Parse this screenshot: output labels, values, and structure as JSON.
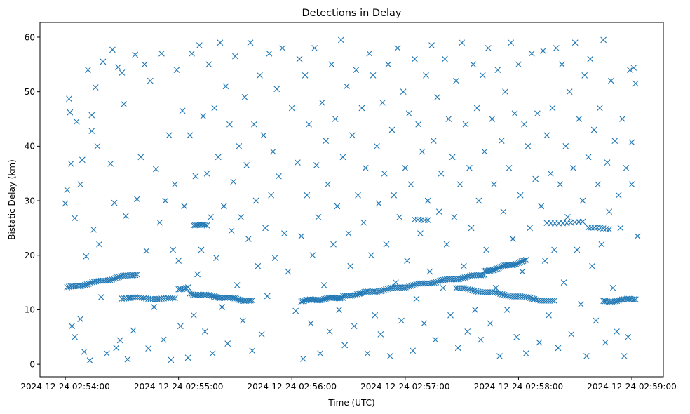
{
  "chart_data": {
    "type": "scatter",
    "title": "Detections in Delay",
    "xlabel": "Time (UTC)",
    "ylabel": "Bistatic Delay (km)",
    "x_units": "seconds after 2024-12-24 02:54:00",
    "xlim": [
      -13.4,
      316.7
    ],
    "ylim": [
      -2.3,
      62.7
    ],
    "grid": false,
    "marker": "x",
    "color": "#1f77b4",
    "x_ticks": [
      {
        "value": 0,
        "label": "2024-12-24 02:54:00"
      },
      {
        "value": 60,
        "label": "2024-12-24 02:55:00"
      },
      {
        "value": 120,
        "label": "2024-12-24 02:56:00"
      },
      {
        "value": 180,
        "label": "2024-12-24 02:57:00"
      },
      {
        "value": 240,
        "label": "2024-12-24 02:58:00"
      },
      {
        "value": 300,
        "label": "2024-12-24 02:59:00"
      }
    ],
    "y_ticks": [
      {
        "value": 0,
        "label": "0"
      },
      {
        "value": 10,
        "label": "10"
      },
      {
        "value": 20,
        "label": "20"
      },
      {
        "value": 30,
        "label": "30"
      },
      {
        "value": 40,
        "label": "40"
      },
      {
        "value": 50,
        "label": "50"
      },
      {
        "value": 60,
        "label": "60"
      }
    ],
    "tracks": [
      {
        "t": [
          1,
          38
        ],
        "d": [
          14.0,
          16.6
        ],
        "n": 40
      },
      {
        "t": [
          30,
          58
        ],
        "d": [
          12.2,
          12.0
        ],
        "n": 25
      },
      {
        "t": [
          60,
          65
        ],
        "d": [
          13.8,
          14.2
        ],
        "n": 6
      },
      {
        "t": [
          68,
          75
        ],
        "d": [
          25.6,
          25.4
        ],
        "n": 10
      },
      {
        "t": [
          66,
          99
        ],
        "d": [
          13.0,
          11.6
        ],
        "n": 40
      },
      {
        "t": [
          125,
          147
        ],
        "d": [
          11.6,
          12.3
        ],
        "n": 30
      },
      {
        "t": [
          147,
          222
        ],
        "d": [
          12.5,
          16.5
        ],
        "n": 80
      },
      {
        "t": [
          222,
          244
        ],
        "d": [
          17.0,
          19.0
        ],
        "n": 30
      },
      {
        "t": [
          207,
          259
        ],
        "d": [
          14.0,
          11.5
        ],
        "n": 50
      },
      {
        "t": [
          285,
          302
        ],
        "d": [
          11.5,
          12.0
        ],
        "n": 20
      },
      {
        "t": [
          255,
          274
        ],
        "d": [
          26.0,
          26.0
        ],
        "n": 10
      },
      {
        "t": [
          185,
          192
        ],
        "d": [
          26.5,
          26.6
        ],
        "n": 5
      },
      {
        "t": [
          277,
          288
        ],
        "d": [
          25.0,
          24.8
        ],
        "n": 8
      }
    ],
    "points": [
      [
        0,
        29.5
      ],
      [
        1,
        32
      ],
      [
        2,
        48.7
      ],
      [
        2.5,
        46.2
      ],
      [
        3,
        36.8
      ],
      [
        3.5,
        7
      ],
      [
        5,
        5
      ],
      [
        5,
        26.8
      ],
      [
        6,
        44.5
      ],
      [
        8,
        33
      ],
      [
        8,
        8.3
      ],
      [
        9,
        37.5
      ],
      [
        10,
        2.3
      ],
      [
        11,
        19.8
      ],
      [
        12,
        54
      ],
      [
        13,
        0.7
      ],
      [
        14,
        42.8
      ],
      [
        14,
        45.7
      ],
      [
        15,
        24.7
      ],
      [
        16,
        50.8
      ],
      [
        17,
        40
      ],
      [
        18,
        22
      ],
      [
        19,
        12.3
      ],
      [
        20,
        55.5
      ],
      [
        22,
        2
      ],
      [
        24,
        36.8
      ],
      [
        25,
        57.7
      ],
      [
        26,
        29.6
      ],
      [
        27,
        3
      ],
      [
        28,
        54.5
      ],
      [
        29,
        4.4
      ],
      [
        30,
        53.5
      ],
      [
        31,
        47.7
      ],
      [
        32,
        27.2
      ],
      [
        33,
        0.9
      ],
      [
        34,
        12.2
      ],
      [
        36,
        6.2
      ],
      [
        37,
        56.8
      ],
      [
        38,
        30.3
      ],
      [
        40,
        38
      ],
      [
        42,
        55
      ],
      [
        43,
        20.8
      ],
      [
        44,
        2.9
      ],
      [
        45,
        52
      ],
      [
        47,
        10.5
      ],
      [
        48,
        35.8
      ],
      [
        50,
        26
      ],
      [
        51,
        57
      ],
      [
        52,
        4.5
      ],
      [
        53,
        30
      ],
      [
        55,
        42
      ],
      [
        56,
        0.8
      ],
      [
        57,
        21
      ],
      [
        58,
        33
      ],
      [
        59,
        54
      ],
      [
        60,
        19
      ],
      [
        61,
        7
      ],
      [
        62,
        46.5
      ],
      [
        63,
        29
      ],
      [
        65,
        1.2
      ],
      [
        66,
        42
      ],
      [
        67,
        57
      ],
      [
        68,
        9
      ],
      [
        69,
        34.5
      ],
      [
        70,
        16.5
      ],
      [
        71,
        58.5
      ],
      [
        72,
        21
      ],
      [
        73,
        45.5
      ],
      [
        74,
        6
      ],
      [
        75,
        35
      ],
      [
        76,
        55
      ],
      [
        77,
        27
      ],
      [
        78,
        2
      ],
      [
        79,
        47
      ],
      [
        80,
        19.5
      ],
      [
        81,
        38
      ],
      [
        82,
        59
      ],
      [
        83,
        10.5
      ],
      [
        84,
        29
      ],
      [
        85,
        51
      ],
      [
        86,
        3.8
      ],
      [
        87,
        44
      ],
      [
        88,
        24.5
      ],
      [
        89,
        33.5
      ],
      [
        90,
        56.5
      ],
      [
        91,
        14.5
      ],
      [
        92,
        40
      ],
      [
        93,
        27
      ],
      [
        94,
        8
      ],
      [
        95,
        49
      ],
      [
        96,
        36.5
      ],
      [
        97,
        23
      ],
      [
        98,
        59
      ],
      [
        99,
        2.5
      ],
      [
        100,
        44
      ],
      [
        101,
        30
      ],
      [
        102,
        18
      ],
      [
        103,
        53
      ],
      [
        104,
        5.5
      ],
      [
        105,
        42
      ],
      [
        106,
        25
      ],
      [
        107,
        12.5
      ],
      [
        108,
        57
      ],
      [
        109,
        31
      ],
      [
        110,
        39
      ],
      [
        111,
        19.5
      ],
      [
        112,
        50.5
      ],
      [
        113,
        34.5
      ],
      [
        115,
        58
      ],
      [
        116,
        24
      ],
      [
        118,
        17
      ],
      [
        120,
        47
      ],
      [
        122,
        9.8
      ],
      [
        123,
        37
      ],
      [
        124,
        56
      ],
      [
        125,
        23.5
      ],
      [
        126,
        1
      ],
      [
        127,
        53
      ],
      [
        128,
        31
      ],
      [
        129,
        44
      ],
      [
        130,
        7.5
      ],
      [
        131,
        20
      ],
      [
        132,
        58
      ],
      [
        133,
        36.5
      ],
      [
        134,
        27
      ],
      [
        135,
        2
      ],
      [
        136,
        48
      ],
      [
        137,
        14.5
      ],
      [
        138,
        41
      ],
      [
        139,
        33
      ],
      [
        140,
        6
      ],
      [
        141,
        55
      ],
      [
        142,
        22
      ],
      [
        143,
        45
      ],
      [
        144,
        29
      ],
      [
        145,
        10
      ],
      [
        146,
        59.5
      ],
      [
        147,
        38
      ],
      [
        148,
        3.5
      ],
      [
        149,
        51
      ],
      [
        150,
        24
      ],
      [
        151,
        18
      ],
      [
        152,
        42
      ],
      [
        153,
        7
      ],
      [
        154,
        54
      ],
      [
        155,
        31
      ],
      [
        156,
        13
      ],
      [
        157,
        47
      ],
      [
        158,
        26
      ],
      [
        159,
        36
      ],
      [
        160,
        2
      ],
      [
        161,
        57
      ],
      [
        162,
        20
      ],
      [
        163,
        53
      ],
      [
        164,
        9
      ],
      [
        165,
        40
      ],
      [
        166,
        29.5
      ],
      [
        167,
        5.5
      ],
      [
        168,
        48
      ],
      [
        169,
        35
      ],
      [
        170,
        22
      ],
      [
        171,
        55
      ],
      [
        172,
        1.5
      ],
      [
        173,
        43
      ],
      [
        174,
        31
      ],
      [
        175,
        15
      ],
      [
        176,
        58
      ],
      [
        177,
        27
      ],
      [
        178,
        8
      ],
      [
        179,
        50
      ],
      [
        180,
        36
      ],
      [
        181,
        19
      ],
      [
        182,
        46
      ],
      [
        183,
        33
      ],
      [
        184,
        2.5
      ],
      [
        185,
        56
      ],
      [
        186,
        12
      ],
      [
        187,
        44
      ],
      [
        188,
        24
      ],
      [
        189,
        39
      ],
      [
        190,
        7.5
      ],
      [
        191,
        53
      ],
      [
        192,
        30
      ],
      [
        193,
        17
      ],
      [
        194,
        58.5
      ],
      [
        195,
        41
      ],
      [
        196,
        4.5
      ],
      [
        197,
        49
      ],
      [
        198,
        28
      ],
      [
        199,
        35
      ],
      [
        200,
        14
      ],
      [
        201,
        56
      ],
      [
        202,
        22
      ],
      [
        203,
        45
      ],
      [
        204,
        9
      ],
      [
        205,
        38
      ],
      [
        206,
        27
      ],
      [
        207,
        52
      ],
      [
        208,
        3
      ],
      [
        209,
        33
      ],
      [
        210,
        59
      ],
      [
        211,
        18
      ],
      [
        212,
        44
      ],
      [
        213,
        6
      ],
      [
        214,
        36
      ],
      [
        215,
        25
      ],
      [
        216,
        55
      ],
      [
        217,
        10
      ],
      [
        218,
        47
      ],
      [
        219,
        30
      ],
      [
        220,
        4.5
      ],
      [
        221,
        53
      ],
      [
        222,
        39
      ],
      [
        223,
        21
      ],
      [
        224,
        58
      ],
      [
        225,
        7.5
      ],
      [
        226,
        45
      ],
      [
        227,
        33
      ],
      [
        228,
        14
      ],
      [
        229,
        54
      ],
      [
        230,
        1.5
      ],
      [
        231,
        41
      ],
      [
        232,
        28
      ],
      [
        233,
        50
      ],
      [
        234,
        10
      ],
      [
        235,
        36
      ],
      [
        236,
        59
      ],
      [
        237,
        23
      ],
      [
        238,
        46
      ],
      [
        239,
        5
      ],
      [
        240,
        55
      ],
      [
        241,
        31
      ],
      [
        242,
        17
      ],
      [
        243,
        44
      ],
      [
        244,
        2
      ],
      [
        245,
        40
      ],
      [
        246,
        25
      ],
      [
        247,
        57
      ],
      [
        248,
        12
      ],
      [
        249,
        34
      ],
      [
        250,
        46
      ],
      [
        251,
        4
      ],
      [
        252,
        29
      ],
      [
        253,
        57.5
      ],
      [
        254,
        19
      ],
      [
        255,
        42
      ],
      [
        256,
        9
      ],
      [
        257,
        35
      ],
      [
        258,
        47
      ],
      [
        259,
        21
      ],
      [
        260,
        58
      ],
      [
        261,
        3
      ],
      [
        262,
        33
      ],
      [
        263,
        55
      ],
      [
        264,
        15
      ],
      [
        265,
        40
      ],
      [
        266,
        27
      ],
      [
        267,
        50
      ],
      [
        268,
        5.5
      ],
      [
        269,
        36
      ],
      [
        270,
        59
      ],
      [
        271,
        21
      ],
      [
        272,
        45
      ],
      [
        273,
        11
      ],
      [
        274,
        30
      ],
      [
        275,
        53
      ],
      [
        276,
        1.5
      ],
      [
        277,
        38
      ],
      [
        278,
        56
      ],
      [
        279,
        18
      ],
      [
        280,
        43
      ],
      [
        281,
        8
      ],
      [
        282,
        33
      ],
      [
        283,
        47
      ],
      [
        284,
        22
      ],
      [
        285,
        59.5
      ],
      [
        286,
        4
      ],
      [
        287,
        37
      ],
      [
        288,
        28
      ],
      [
        289,
        52
      ],
      [
        290,
        14
      ],
      [
        291,
        41
      ],
      [
        292,
        6
      ],
      [
        293,
        31
      ],
      [
        294,
        25
      ],
      [
        295,
        45
      ],
      [
        296,
        1.5
      ],
      [
        297,
        36
      ],
      [
        298,
        5
      ],
      [
        299,
        54
      ],
      [
        300,
        40.7
      ],
      [
        300,
        33
      ],
      [
        301,
        54.4
      ],
      [
        302,
        51.5
      ],
      [
        303,
        23.5
      ]
    ]
  }
}
